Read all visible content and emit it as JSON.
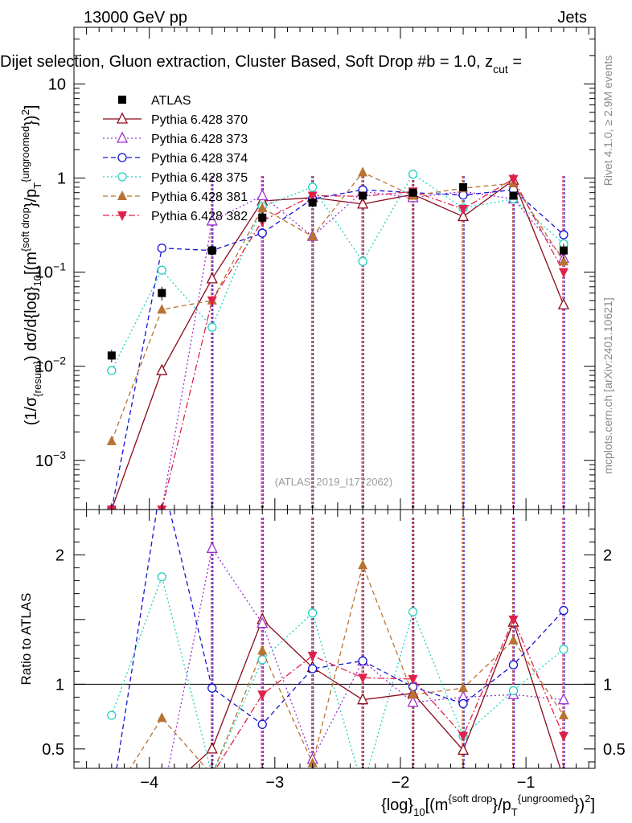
{
  "header": {
    "left": "13000 GeV pp",
    "right": "Jets",
    "title": "Dijet selection, Gluon extraction, Cluster Based, Soft Drop #b = 1.0, z",
    "title_sub": "cut",
    "title_tail": " =",
    "watermark_events": "≥ 2.9M events",
    "watermark_rivet": "Rivet 4.1.0,",
    "watermark_site": "mcplots.cern.ch [arXiv:2401.10621]",
    "analysis_id": "(ATLAS_2019_I1772062)"
  },
  "chart_data": {
    "type": "line",
    "x": [
      -4.3,
      -3.9,
      -3.5,
      -3.1,
      -2.7,
      -2.3,
      -1.9,
      -1.5,
      -1.1,
      -0.7
    ],
    "xlim": [
      -4.6,
      -0.45
    ],
    "xticks": [
      -4,
      -3,
      -2,
      -1
    ],
    "xtick_labels": [
      "−4",
      "−3",
      "−2",
      "−1"
    ],
    "xlabel": {
      "main": "{log}",
      "sub10": "10",
      "mid": "[(m",
      "sup1": "{soft drop",
      "mid2": "}/p",
      "subT": "T",
      "sup2": "{ungroomed",
      "tail": "})",
      "sup3": "2",
      "end": "]"
    },
    "ylabel": "(1/σ{resum}) dσ/d{log}10[(m{soft drop}/pT{ungroomed})2]",
    "ylabel_parts": {
      "p1": "(1/σ",
      "p1sub": "{resum}",
      "p2": ") dσ/d{log}",
      "p2sub": "10",
      "p3": "[(m",
      "p3sup": "{soft drop",
      "p4": "}/p",
      "p4sub": "T",
      "p4sup": "{ungroomed",
      "p5": "})",
      "p5sup": "2",
      "p6": "]"
    },
    "main_ylim": [
      0.0003,
      40
    ],
    "main_yscale": "log",
    "main_ytick_labels": [
      {
        "v": 0.001,
        "base": "10",
        "exp": "−3"
      },
      {
        "v": 0.01,
        "base": "10",
        "exp": "−2"
      },
      {
        "v": 0.1,
        "base": "10",
        "exp": "−1"
      },
      {
        "v": 1,
        "label": "1"
      },
      {
        "v": 10,
        "label": "10"
      }
    ],
    "ratio_ylim": [
      0.35,
      2.35
    ],
    "ratio_ylabel": "Ratio to ATLAS",
    "ratio_ytick_labels": [
      {
        "v": 0.5,
        "label": "0.5"
      },
      {
        "v": 1,
        "label": "1"
      },
      {
        "v": 2,
        "label": "2"
      }
    ],
    "series": [
      {
        "name": "ATLAS",
        "color": "#000000",
        "style": "data",
        "marker": "square",
        "values": [
          0.013,
          0.06,
          0.17,
          0.38,
          0.55,
          0.65,
          0.7,
          0.8,
          0.65,
          0.17
        ],
        "errors": [
          0.002,
          0.01,
          0.02,
          0.05,
          0.06,
          0.06,
          0.06,
          0.07,
          0.06,
          0.03
        ]
      },
      {
        "name": "Pythia 6.428 370",
        "color": "#8b0a1a",
        "style": "solid",
        "marker": "triangle-open",
        "values": [
          0.0003,
          0.009,
          0.085,
          0.57,
          0.62,
          0.53,
          0.67,
          0.39,
          0.95,
          0.045
        ],
        "ratio": [
          null,
          0.15,
          0.5,
          1.5,
          1.13,
          0.88,
          0.93,
          0.49,
          1.48,
          0.27
        ]
      },
      {
        "name": "Pythia 6.428 373",
        "color": "#9b30d0",
        "style": "dotted",
        "marker": "triangle-open",
        "values": [
          0.0003,
          0.0003,
          0.35,
          0.65,
          0.24,
          0.72,
          0.62,
          0.72,
          0.6,
          0.14
        ],
        "ratio": [
          null,
          null,
          2.05,
          1.47,
          0.42,
          1.18,
          0.86,
          0.9,
          0.92,
          0.88
        ]
      },
      {
        "name": "Pythia 6.428 374",
        "color": "#1414d2",
        "style": "dashed",
        "marker": "circle-open",
        "values": [
          0.0003,
          0.18,
          0.17,
          0.26,
          0.6,
          0.75,
          0.7,
          0.66,
          0.75,
          0.25
        ],
        "ratio": [
          null,
          2.6,
          0.97,
          0.69,
          1.12,
          1.18,
          0.98,
          0.85,
          1.15,
          1.57
        ]
      },
      {
        "name": "Pythia 6.428 375",
        "color": "#20d0c0",
        "style": "dotted",
        "marker": "circle-open",
        "values": [
          0.009,
          0.105,
          0.026,
          0.5,
          0.8,
          0.13,
          1.1,
          0.48,
          0.6,
          0.2
        ],
        "ratio": [
          0.76,
          1.83,
          0.3,
          1.19,
          1.55,
          0.2,
          1.56,
          0.6,
          0.95,
          1.27
        ]
      },
      {
        "name": "Pythia 6.428 381",
        "color": "#b87333",
        "style": "dashed",
        "marker": "triangle-filled",
        "values": [
          0.0016,
          0.04,
          0.05,
          0.48,
          0.24,
          1.15,
          0.65,
          0.78,
          0.88,
          0.13
        ],
        "ratio": [
          0.12,
          0.74,
          0.3,
          1.26,
          0.39,
          1.92,
          0.92,
          0.97,
          1.34,
          0.76
        ]
      },
      {
        "name": "Pythia 6.428 382",
        "color": "#e0204a",
        "style": "dashdot",
        "marker": "triangle-down-filled",
        "values": [
          0.0003,
          0.0003,
          0.05,
          0.35,
          0.65,
          0.64,
          0.72,
          0.47,
          0.98,
          0.1
        ],
        "ratio": [
          null,
          null,
          0.3,
          0.92,
          1.22,
          1.05,
          1.04,
          0.6,
          1.5,
          0.6
        ]
      }
    ]
  }
}
